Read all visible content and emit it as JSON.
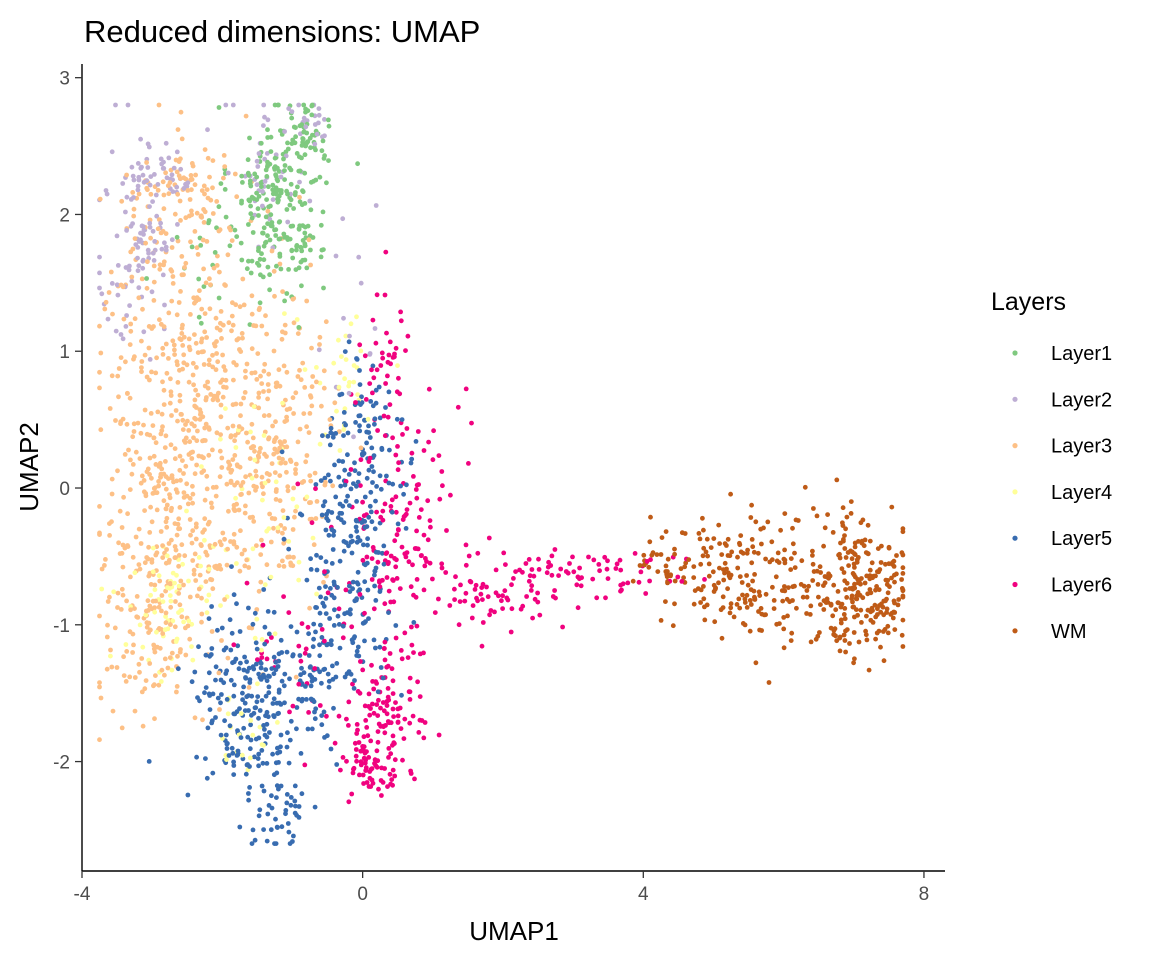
{
  "chart_data": {
    "type": "scatter",
    "title": "Reduced dimensions: UMAP",
    "xlabel": "UMAP1",
    "ylabel": "UMAP2",
    "xlim": [
      -4.0,
      8.3
    ],
    "ylim": [
      -2.8,
      3.1
    ],
    "xticks": [
      -4,
      0,
      4,
      8
    ],
    "xtick_labels": [
      "-4",
      "0",
      "4",
      "8"
    ],
    "yticks": [
      -2,
      -1,
      0,
      1,
      2,
      3
    ],
    "ytick_labels": [
      "-2",
      "-1",
      "0",
      "1",
      "2",
      "3"
    ],
    "grid": false,
    "legend": {
      "title": "Layers",
      "placement": "right"
    },
    "series": [
      {
        "name": "Layer1",
        "color": "#7fc97f",
        "clusters": [
          {
            "cx": -1.2,
            "cy": 2.1,
            "sx": 0.35,
            "sy": 0.35,
            "n": 230
          },
          {
            "cx": -0.8,
            "cy": 2.6,
            "sx": 0.15,
            "sy": 0.12,
            "n": 40
          },
          {
            "cx": -2.0,
            "cy": 1.6,
            "sx": 0.45,
            "sy": 0.2,
            "n": 25
          }
        ]
      },
      {
        "name": "Layer2",
        "color": "#beaed4",
        "clusters": [
          {
            "cx": -3.2,
            "cy": 1.8,
            "sx": 0.3,
            "sy": 0.4,
            "n": 90
          },
          {
            "cx": -2.8,
            "cy": 2.3,
            "sx": 0.3,
            "sy": 0.1,
            "n": 40
          },
          {
            "cx": -1.4,
            "cy": 2.3,
            "sx": 0.3,
            "sy": 0.3,
            "n": 40
          },
          {
            "cx": -0.7,
            "cy": 2.7,
            "sx": 0.15,
            "sy": 0.1,
            "n": 20
          },
          {
            "cx": -0.2,
            "cy": 1.2,
            "sx": 0.3,
            "sy": 0.5,
            "n": 15
          }
        ]
      },
      {
        "name": "Layer3",
        "color": "#fdc086",
        "clusters": [
          {
            "cx": -2.5,
            "cy": 1.2,
            "sx": 0.6,
            "sy": 0.6,
            "n": 330
          },
          {
            "cx": -2.6,
            "cy": -0.2,
            "sx": 0.55,
            "sy": 0.55,
            "n": 330
          },
          {
            "cx": -1.2,
            "cy": 0.3,
            "sx": 0.45,
            "sy": 0.55,
            "n": 230
          },
          {
            "cx": -3.0,
            "cy": -1.0,
            "sx": 0.4,
            "sy": 0.3,
            "n": 100
          },
          {
            "cx": -2.5,
            "cy": 2.2,
            "sx": 0.3,
            "sy": 0.1,
            "n": 45
          }
        ]
      },
      {
        "name": "Layer4",
        "color": "#ffff99",
        "clusters": [
          {
            "cx": -2.8,
            "cy": -0.9,
            "sx": 0.35,
            "sy": 0.25,
            "n": 60
          },
          {
            "cx": -1.5,
            "cy": -0.2,
            "sx": 0.5,
            "sy": 0.5,
            "n": 50
          },
          {
            "cx": -0.3,
            "cy": 0.8,
            "sx": 0.3,
            "sy": 0.3,
            "n": 30
          },
          {
            "cx": -1.8,
            "cy": -1.8,
            "sx": 0.25,
            "sy": 0.2,
            "n": 20
          }
        ]
      },
      {
        "name": "Layer5",
        "color": "#386cb0",
        "clusters": [
          {
            "cx": -1.6,
            "cy": -1.6,
            "sx": 0.45,
            "sy": 0.4,
            "n": 230
          },
          {
            "cx": -1.2,
            "cy": -2.4,
            "sx": 0.2,
            "sy": 0.15,
            "n": 40
          },
          {
            "cx": -0.2,
            "cy": -0.4,
            "sx": 0.35,
            "sy": 0.5,
            "n": 200
          },
          {
            "cx": -0.6,
            "cy": -1.3,
            "sx": 0.35,
            "sy": 0.3,
            "n": 80
          },
          {
            "cx": 0.2,
            "cy": 0.3,
            "sx": 0.3,
            "sy": 0.3,
            "n": 60
          }
        ]
      },
      {
        "name": "Layer6",
        "color": "#f0027f",
        "clusters": [
          {
            "cx": 0.3,
            "cy": -1.7,
            "sx": 0.25,
            "sy": 0.25,
            "n": 120
          },
          {
            "cx": 0.0,
            "cy": -2.0,
            "sx": 0.15,
            "sy": 0.12,
            "n": 40
          },
          {
            "cx": 0.6,
            "cy": -0.3,
            "sx": 0.4,
            "sy": 0.5,
            "n": 150
          },
          {
            "cx": 1.8,
            "cy": -0.75,
            "sx": 0.5,
            "sy": 0.18,
            "n": 70
          },
          {
            "cx": 3.3,
            "cy": -0.62,
            "sx": 0.6,
            "sy": 0.1,
            "n": 60
          },
          {
            "cx": 0.3,
            "cy": 0.9,
            "sx": 0.2,
            "sy": 0.3,
            "n": 40
          },
          {
            "cx": -0.9,
            "cy": -1.0,
            "sx": 0.4,
            "sy": 0.4,
            "n": 40
          }
        ]
      },
      {
        "name": "WM",
        "color": "#bf5b17",
        "clusters": [
          {
            "cx": 5.4,
            "cy": -0.6,
            "sx": 0.5,
            "sy": 0.22,
            "n": 130
          },
          {
            "cx": 7.1,
            "cy": -0.8,
            "sx": 0.35,
            "sy": 0.22,
            "n": 200
          },
          {
            "cx": 6.8,
            "cy": -0.4,
            "sx": 0.25,
            "sy": 0.2,
            "n": 50
          },
          {
            "cx": 4.5,
            "cy": -0.55,
            "sx": 0.3,
            "sy": 0.15,
            "n": 40
          },
          {
            "cx": 5.8,
            "cy": -0.9,
            "sx": 0.4,
            "sy": 0.2,
            "n": 40
          }
        ]
      }
    ]
  }
}
